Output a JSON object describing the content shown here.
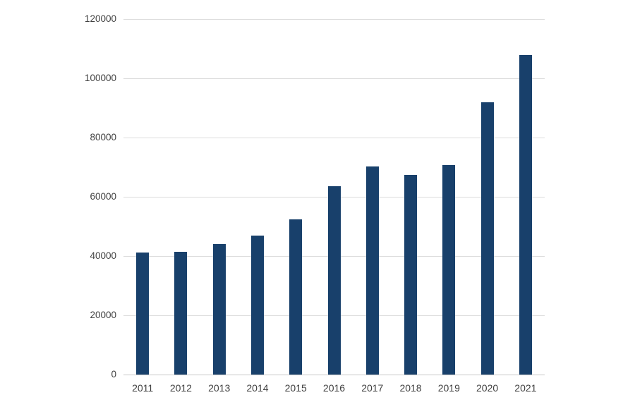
{
  "chart_data": {
    "type": "bar",
    "title": "",
    "xlabel": "",
    "ylabel": "",
    "categories": [
      "2011",
      "2012",
      "2013",
      "2014",
      "2015",
      "2016",
      "2017",
      "2018",
      "2019",
      "2020",
      "2021"
    ],
    "values": [
      41200,
      41500,
      44000,
      47000,
      52400,
      63600,
      70200,
      67400,
      70700,
      91800,
      107800
    ],
    "ylim": [
      0,
      120000
    ],
    "yticks": [
      0,
      20000,
      40000,
      60000,
      80000,
      100000,
      120000
    ],
    "ytick_labels": [
      "0",
      "20000",
      "40000",
      "60000",
      "80000",
      "100000",
      "120000"
    ],
    "grid": true,
    "legend": false,
    "bar_color": "#18406b",
    "gridline_color": "#dcdcdc",
    "axis_line_color": "#c9c9c9",
    "tick_label_color": "#404040",
    "background_color": "#ffffff"
  }
}
